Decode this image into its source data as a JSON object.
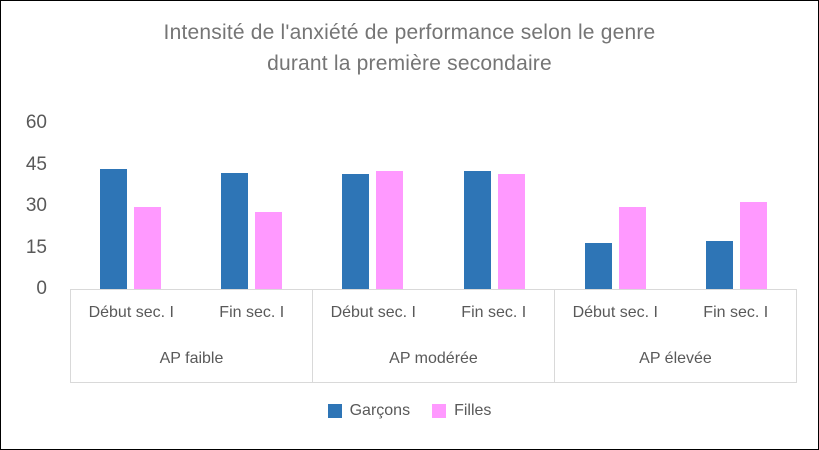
{
  "frame": {
    "background": "#FFFFFF",
    "border_color": "#000000"
  },
  "chart_data": {
    "type": "bar",
    "title": "Intensité de l'anxiété de performance selon le genre durant la première secondaire",
    "title_lines": [
      "Intensité de l'anxiété de performance selon le genre",
      "durant la première secondaire"
    ],
    "categories": [
      "AP faible",
      "AP modérée",
      "AP élevée"
    ],
    "subcategories": [
      "Début sec. I",
      "Fin sec. I"
    ],
    "series": [
      {
        "name": "Garçons",
        "color": "#2E75B6",
        "values": [
          43.5,
          42,
          41.5,
          42.5,
          16.5,
          17.5
        ]
      },
      {
        "name": "Filles",
        "color": "#FF99FF",
        "values": [
          29.5,
          28,
          42.5,
          41.5,
          29.5,
          31.5
        ]
      }
    ],
    "ylim": [
      0,
      60
    ],
    "yticks": [
      0,
      15,
      30,
      45,
      60
    ],
    "xlabel": "",
    "ylabel": "",
    "grid": false,
    "legend_position": "bottom",
    "axis_text_color": "#595959",
    "title_color": "#757575",
    "axis_line_color": "#D9D9D9"
  }
}
